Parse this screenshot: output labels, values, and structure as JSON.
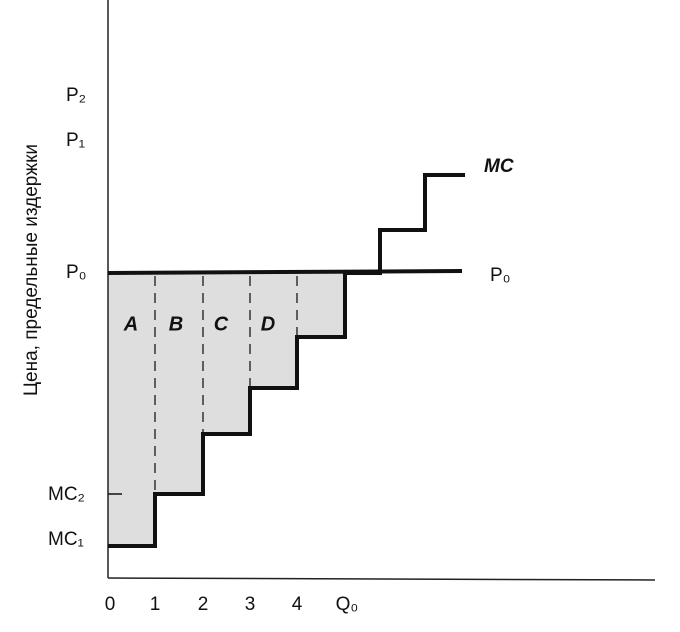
{
  "y_axis_label": "Цена, предельные издержки",
  "y_labels": [
    "P₂",
    "P₁",
    "P₀",
    "MC₂",
    "MC₁"
  ],
  "x_labels": [
    "0",
    "1",
    "2",
    "3",
    "4",
    "Q₀"
  ],
  "curves": {
    "mc": "MC",
    "price": "P₀"
  },
  "areas": [
    "A",
    "B",
    "C",
    "D"
  ]
}
